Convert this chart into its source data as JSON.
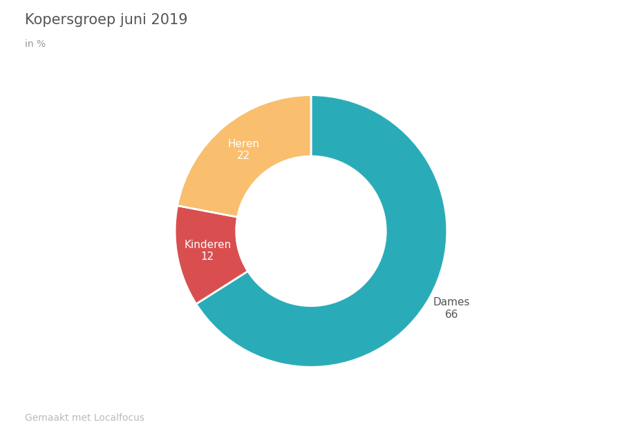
{
  "title": "Kopersgroep juni 2019",
  "subtitle": "in %",
  "footer": "Gemaakt met Localfocus",
  "slices": [
    {
      "label": "Dames",
      "value": 66,
      "color": "#2AACB8",
      "text_color": "#555555",
      "text_outside": true
    },
    {
      "label": "Kinderen",
      "value": 12,
      "color": "#D94F4F",
      "text_color": "#ffffff",
      "text_outside": false
    },
    {
      "label": "Heren",
      "value": 22,
      "color": "#F9BE6E",
      "text_color": "#ffffff",
      "text_outside": false
    }
  ],
  "title_fontsize": 15,
  "subtitle_fontsize": 10,
  "footer_fontsize": 10,
  "label_fontsize": 11,
  "title_color": "#555555",
  "subtitle_color": "#999999",
  "footer_color": "#bbbbbb",
  "background_color": "#ffffff",
  "startangle": 90,
  "donut_width": 0.45
}
